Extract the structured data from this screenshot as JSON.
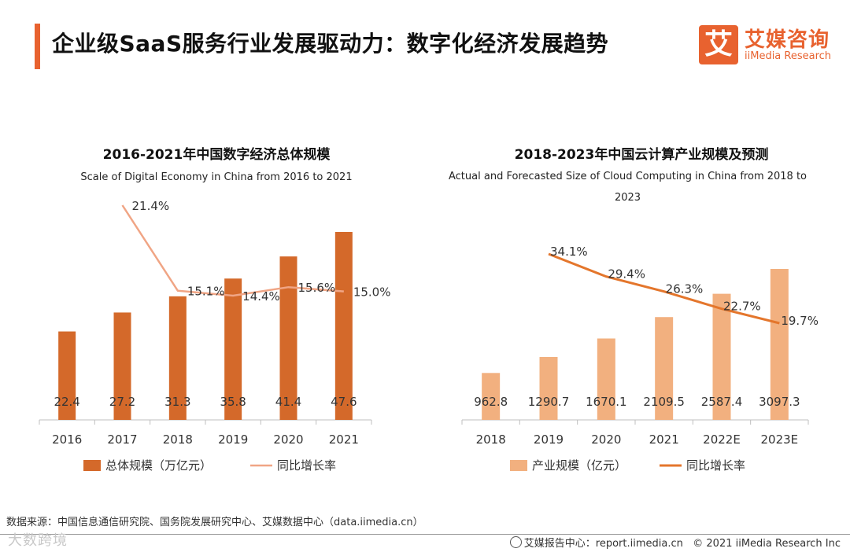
{
  "header": {
    "title": "企业级SaaS服务行业发展驱动力：数字化经济发展趋势",
    "logo_mark": "艾",
    "logo_cn": "艾媒咨询",
    "logo_en": "iiMedia Research"
  },
  "colors": {
    "accent": "#e8622f",
    "left_bar": "#d4692a",
    "left_line": "#f0a585",
    "right_bar": "#f2b07f",
    "right_line": "#e4762c"
  },
  "chart_data": [
    {
      "type": "bar",
      "title": "2016-2021年中国数字经济总体规模",
      "subtitle": "Scale of Digital Economy in China  from 2016 to 2021",
      "categories": [
        "2016",
        "2017",
        "2018",
        "2019",
        "2020",
        "2021"
      ],
      "series": [
        {
          "name": "总体规模（万亿元）",
          "type": "bar",
          "values": [
            22.4,
            27.2,
            31.3,
            35.8,
            41.4,
            47.6
          ],
          "labels": [
            "22.4",
            "27.2",
            "31.3",
            "35.8",
            "41.4",
            "47.6"
          ]
        },
        {
          "name": "同比增长率",
          "type": "line",
          "values": [
            null,
            21.4,
            15.1,
            14.4,
            15.6,
            15.0
          ],
          "labels": [
            "",
            "21.4%",
            "15.1%",
            "14.4%",
            "15.6%",
            "15.0%"
          ]
        }
      ],
      "legend_position": "bottom"
    },
    {
      "type": "bar",
      "title": "2018-2023年中国云计算产业规模及预测",
      "subtitle": "Actual and Forecasted Size of Cloud Computing in China from 2018 to 2023",
      "categories": [
        "2018",
        "2019",
        "2020",
        "2021",
        "2022E",
        "2023E"
      ],
      "series": [
        {
          "name": "产业规模（亿元）",
          "type": "bar",
          "values": [
            962.8,
            1290.7,
            1670.1,
            2109.5,
            2587.4,
            3097.3
          ],
          "labels": [
            "962.8",
            "1290.7",
            "1670.1",
            "2109.5",
            "2587.4",
            "3097.3"
          ]
        },
        {
          "name": "同比增长率",
          "type": "line",
          "values": [
            34.1,
            29.4,
            26.3,
            22.7,
            19.7
          ],
          "x": [
            "2019",
            "2020",
            "2021",
            "2022E",
            "2023E"
          ],
          "labels": [
            "34.1%",
            "29.4%",
            "26.3%",
            "22.7%",
            "19.7%"
          ]
        }
      ],
      "legend_position": "bottom"
    }
  ],
  "footer": {
    "source": "数据来源：中国信息通信研究院、国务院发展研究中心、艾媒数据中心（data.iimedia.cn）",
    "watermark": "大数跨境",
    "report": "艾媒报告中心：report.iimedia.cn",
    "copyright": "© 2021  iiMedia Research Inc"
  }
}
